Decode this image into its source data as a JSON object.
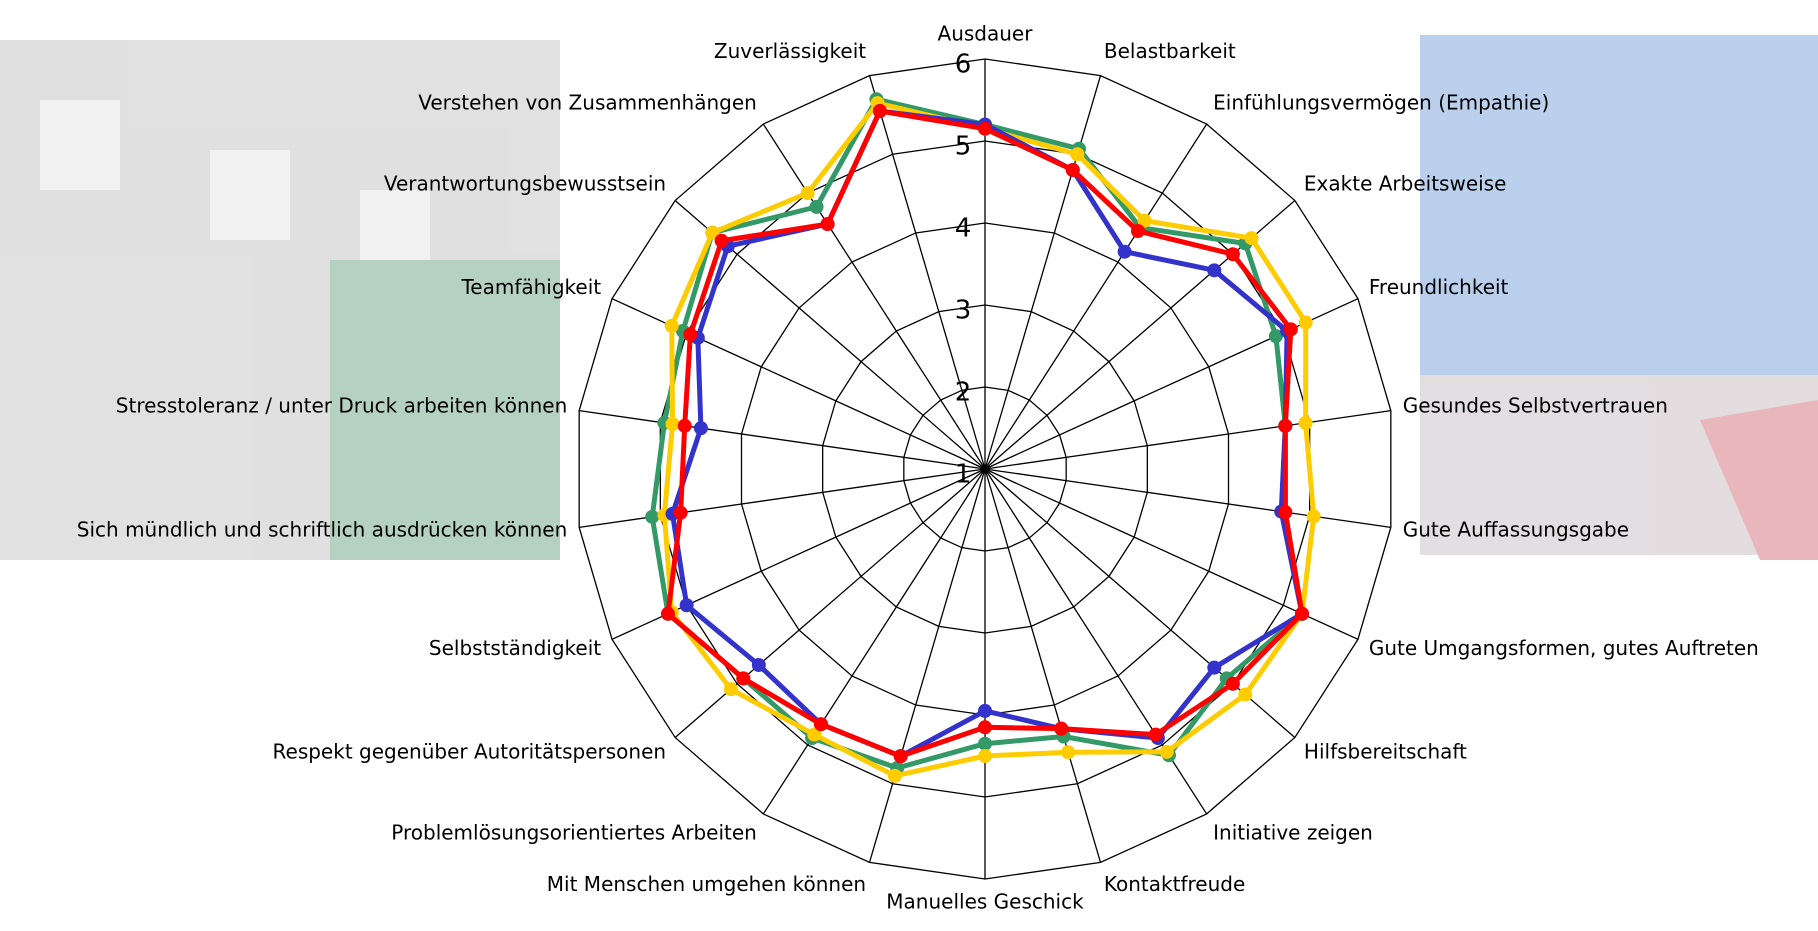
{
  "chart_data": {
    "type": "radar",
    "categories": [
      "Ausdauer",
      "Belastbarkeit",
      "Einfühlungsvermögen (Empathie)",
      "Exakte Arbeitsweise",
      "Freundlichkeit",
      "Gesundes Selbstvertrauen",
      "Gute Auffassungsgabe",
      "Gute Umgangsformen, gutes Auftreten",
      "Hilfsbereitschaft",
      "Initiative zeigen",
      "Kontaktfreude",
      "Manuelles Geschick",
      "Mit Menschen umgehen können",
      "Problemlösungsorientiertes Arbeiten",
      "Respekt gegenüber Autoritätspersonen",
      "Selbstständigkeit",
      "Sich mündlich und schriftlich ausdrücken können",
      "Stresstoleranz / unter Druck arbeiten können",
      "Teamfähigkeit",
      "Verantwortungsbewusstsein",
      "Verstehen von Zusammenhängen",
      "Zuverlässigkeit"
    ],
    "series": [
      {
        "color": "#339966",
        "values": [
          5.2,
          5.07,
          4.5,
          5.2,
          4.9,
          4.7,
          4.7,
          5.25,
          4.9,
          5.15,
          4.4,
          4.35,
          4.8,
          4.9,
          4.9,
          5.25,
          5.1,
          4.95,
          5.05,
          5.4,
          4.8,
          5.7
        ]
      },
      {
        "color": "#ffcc00",
        "values": [
          5.15,
          5.0,
          4.6,
          5.3,
          5.3,
          4.95,
          5.05,
          5.25,
          5.2,
          5.1,
          4.6,
          4.5,
          4.9,
          4.85,
          5.1,
          5.2,
          4.95,
          4.85,
          5.2,
          5.4,
          5.0,
          5.65
        ]
      },
      {
        "color": "#3333cc",
        "values": [
          5.2,
          4.8,
          4.15,
          4.7,
          5.05,
          4.7,
          4.65,
          5.25,
          4.7,
          4.9,
          4.3,
          3.95,
          4.65,
          4.7,
          4.65,
          5.0,
          4.85,
          4.5,
          4.85,
          5.15,
          4.55,
          5.55
        ]
      },
      {
        "color": "#ff0000",
        "values": [
          5.15,
          4.8,
          4.45,
          5.0,
          5.1,
          4.7,
          4.7,
          5.25,
          5.0,
          4.85,
          4.3,
          4.15,
          4.65,
          4.7,
          4.9,
          5.25,
          4.75,
          4.7,
          4.95,
          5.25,
          4.55,
          5.55
        ]
      }
    ],
    "rlim": [
      1,
      6
    ],
    "rticks": [
      1,
      2,
      3,
      4,
      5,
      6
    ],
    "grid": true
  }
}
